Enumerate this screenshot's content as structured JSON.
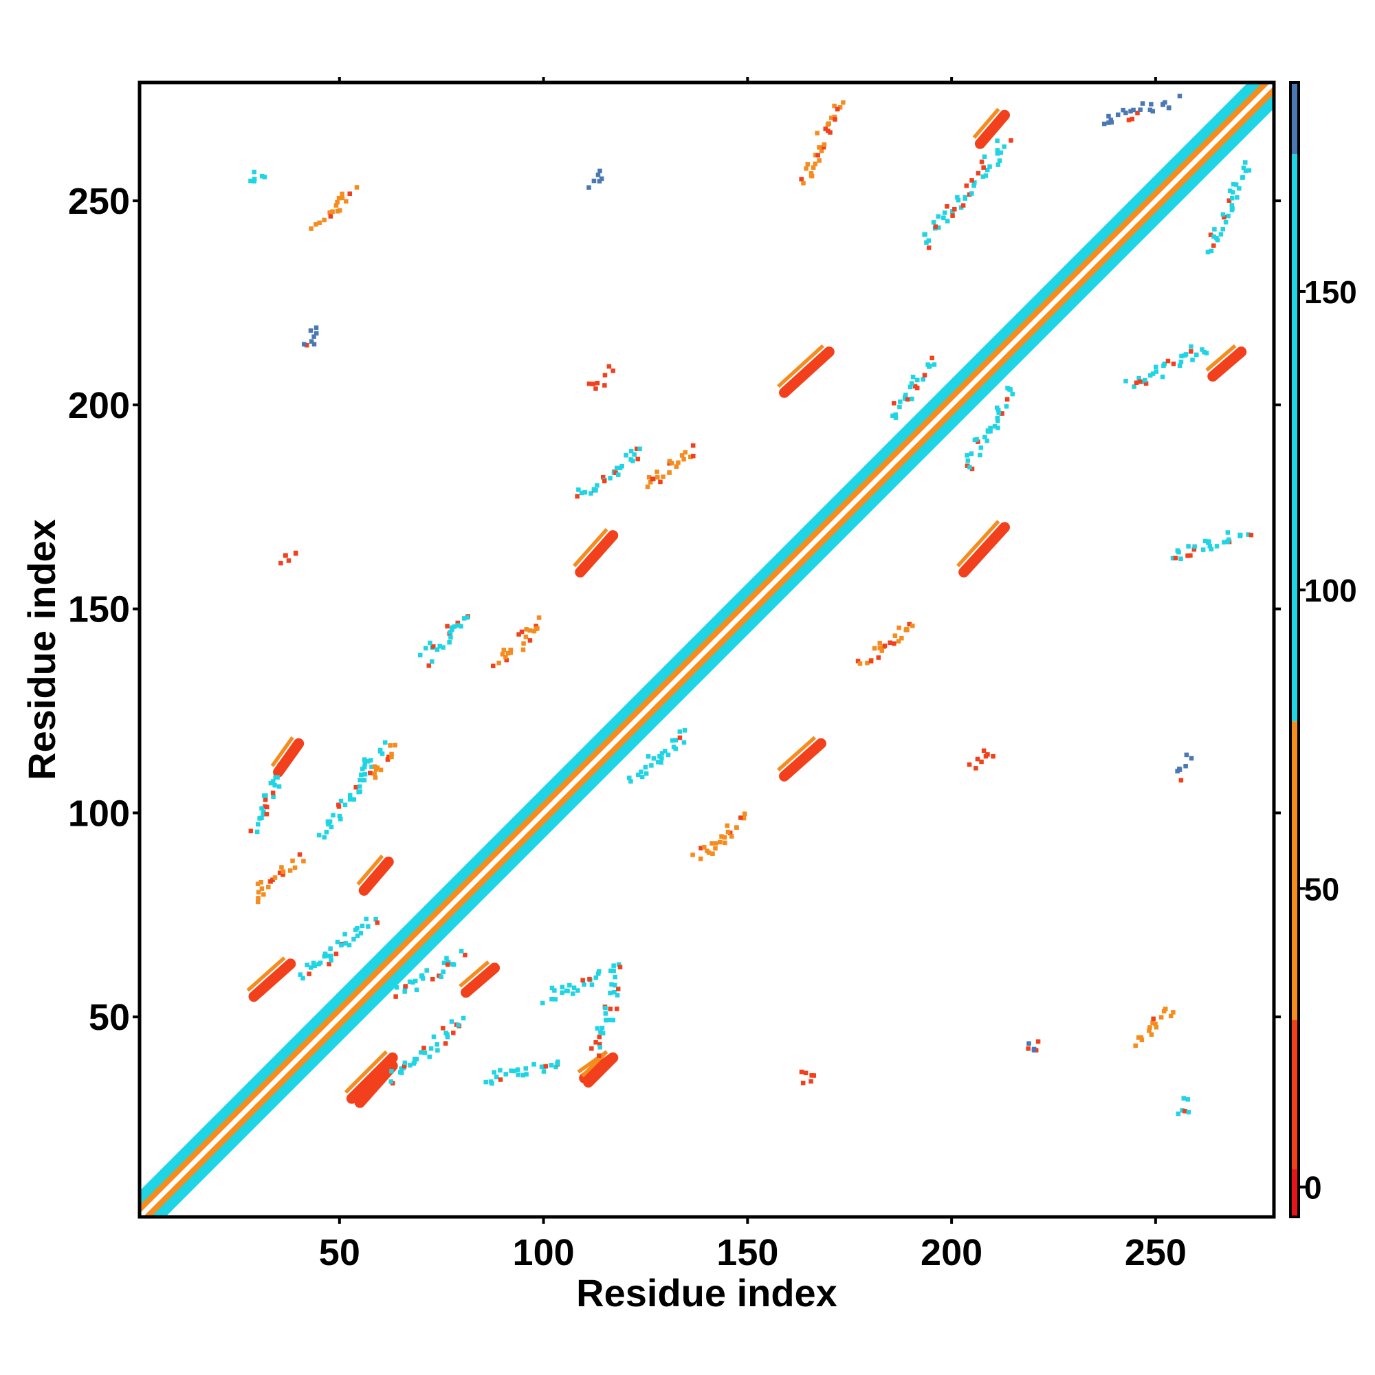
{
  "chart_data": {
    "type": "heatmap",
    "title": "",
    "xlabel": "Residue index",
    "ylabel": "Residue index",
    "xlim": [
      1,
      279
    ],
    "ylim": [
      1,
      279
    ],
    "xticks": [
      50,
      100,
      150,
      200,
      250
    ],
    "yticks": [
      50,
      100,
      150,
      200,
      250
    ],
    "grid": false,
    "colorbar": {
      "position": "right",
      "ticks": [
        0,
        50,
        100,
        150
      ],
      "range": [
        -5,
        185
      ],
      "segments": [
        {
          "from": -5,
          "to": 3,
          "color": "#e8141c"
        },
        {
          "from": 3,
          "to": 28,
          "color": "#f2401c"
        },
        {
          "from": 28,
          "to": 78,
          "color": "#f58c1e"
        },
        {
          "from": 78,
          "to": 173,
          "color": "#1fd4e4"
        },
        {
          "from": 173,
          "to": 185,
          "color": "#4a78b4"
        }
      ]
    },
    "diagonal_band": {
      "start": 1,
      "end": 279,
      "color_center": "#ffffff",
      "color_inner": "#f58c1e",
      "color_outer": "#1fd4e4"
    },
    "features": [
      {
        "kind": "strand",
        "x": [
          35,
          40
        ],
        "y": [
          110,
          117
        ],
        "color": "#f2401c"
      },
      {
        "kind": "strand",
        "x": [
          110,
          117
        ],
        "y": [
          35,
          40
        ],
        "color": "#f2401c"
      },
      {
        "kind": "strand",
        "x": [
          56,
          62
        ],
        "y": [
          81,
          88
        ],
        "color": "#f2401c"
      },
      {
        "kind": "strand",
        "x": [
          81,
          88
        ],
        "y": [
          56,
          62
        ],
        "color": "#f2401c"
      },
      {
        "kind": "strand",
        "x": [
          29,
          38
        ],
        "y": [
          55,
          63
        ],
        "color": "#f2401c"
      },
      {
        "kind": "strand",
        "x": [
          55,
          63
        ],
        "y": [
          29,
          38
        ],
        "color": "#f2401c"
      },
      {
        "kind": "strand",
        "x": [
          53,
          63
        ],
        "y": [
          30,
          40
        ],
        "color": "#f2401c"
      },
      {
        "kind": "strand",
        "x": [
          111,
          117
        ],
        "y": [
          34,
          40
        ],
        "color": "#f2401c"
      },
      {
        "kind": "strand",
        "x": [
          109,
          117
        ],
        "y": [
          159,
          168
        ],
        "color": "#f2401c"
      },
      {
        "kind": "strand",
        "x": [
          159,
          168
        ],
        "y": [
          109,
          117
        ],
        "color": "#f2401c"
      },
      {
        "kind": "strand",
        "x": [
          159,
          170
        ],
        "y": [
          203,
          213
        ],
        "color": "#f2401c"
      },
      {
        "kind": "strand",
        "x": [
          203,
          213
        ],
        "y": [
          159,
          170
        ],
        "color": "#f2401c"
      },
      {
        "kind": "strand",
        "x": [
          207,
          213
        ],
        "y": [
          264,
          271
        ],
        "color": "#f2401c"
      },
      {
        "kind": "strand",
        "x": [
          264,
          271
        ],
        "y": [
          207,
          213
        ],
        "color": "#f2401c"
      },
      {
        "kind": "arc",
        "x": [
          44,
          53
        ],
        "y": [
          245,
          253
        ],
        "color": "#f58c1e"
      },
      {
        "kind": "arc",
        "x": [
          245,
          253
        ],
        "y": [
          44,
          53
        ],
        "color": "#f58c1e"
      },
      {
        "kind": "arc",
        "x": [
          178,
          190
        ],
        "y": [
          137,
          148
        ],
        "color": "#f58c1e"
      },
      {
        "kind": "arc",
        "x": [
          88,
          100
        ],
        "y": [
          137,
          148
        ],
        "color": "#f58c1e"
      },
      {
        "kind": "arc",
        "x": [
          137,
          149
        ],
        "y": [
          89,
          100
        ],
        "color": "#f58c1e"
      },
      {
        "kind": "arc",
        "x": [
          124,
          136
        ],
        "y": [
          180,
          190
        ],
        "color": "#f58c1e"
      },
      {
        "kind": "arc",
        "x": [
          70,
          82
        ],
        "y": [
          138,
          150
        ],
        "color": "#1fd4e4"
      },
      {
        "kind": "arc",
        "x": [
          121,
          135
        ],
        "y": [
          109,
          120
        ],
        "color": "#1fd4e4"
      },
      {
        "kind": "arc",
        "x": [
          108,
          124
        ],
        "y": [
          178,
          190
        ],
        "color": "#1fd4e4"
      },
      {
        "kind": "arc",
        "x": [
          185,
          195
        ],
        "y": [
          198,
          212
        ],
        "color": "#1fd4e4"
      },
      {
        "kind": "arc",
        "x": [
          203,
          215
        ],
        "y": [
          185,
          205
        ],
        "color": "#1fd4e4"
      },
      {
        "kind": "arc",
        "x": [
          193,
          213
        ],
        "y": [
          240,
          265
        ],
        "color": "#1fd4e4"
      },
      {
        "kind": "arc",
        "x": [
          243,
          262
        ],
        "y": [
          205,
          215
        ],
        "color": "#1fd4e4"
      },
      {
        "kind": "arc",
        "x": [
          253,
          273
        ],
        "y": [
          163,
          170
        ],
        "color": "#1fd4e4"
      },
      {
        "kind": "arc",
        "x": [
          263,
          272
        ],
        "y": [
          238,
          260
        ],
        "color": "#1fd4e4"
      },
      {
        "kind": "arc",
        "x": [
          163,
          172
        ],
        "y": [
          255,
          275
        ],
        "color": "#f58c1e"
      },
      {
        "kind": "arc",
        "x": [
          236,
          255
        ],
        "y": [
          270,
          275
        ],
        "color": "#4a78b4"
      },
      {
        "kind": "arc",
        "x": [
          62,
          80
        ],
        "y": [
          35,
          50
        ],
        "color": "#1fd4e4"
      },
      {
        "kind": "arc",
        "x": [
          64,
          80
        ],
        "y": [
          56,
          66
        ],
        "color": "#1fd4e4"
      },
      {
        "kind": "arc",
        "x": [
          40,
          58
        ],
        "y": [
          60,
          75
        ],
        "color": "#1fd4e4"
      },
      {
        "kind": "arc",
        "x": [
          45,
          60
        ],
        "y": [
          95,
          117
        ],
        "color": "#1fd4e4"
      },
      {
        "kind": "arc",
        "x": [
          28,
          36
        ],
        "y": [
          96,
          113
        ],
        "color": "#1fd4e4"
      },
      {
        "kind": "arc",
        "x": [
          85,
          105
        ],
        "y": [
          35,
          40
        ],
        "color": "#1fd4e4"
      },
      {
        "kind": "arc",
        "x": [
          28,
          40
        ],
        "y": [
          80,
          90
        ],
        "color": "#f58c1e"
      },
      {
        "kind": "arc",
        "x": [
          57,
          63
        ],
        "y": [
          109,
          117
        ],
        "color": "#f58c1e"
      },
      {
        "kind": "arc",
        "x": [
          112,
          118
        ],
        "y": [
          41,
          60
        ],
        "color": "#1fd4e4"
      },
      {
        "kind": "arc",
        "x": [
          100,
          118
        ],
        "y": [
          55,
          63
        ],
        "color": "#1fd4e4"
      },
      {
        "kind": "arc",
        "x": [
          218,
          222
        ],
        "y": [
          42,
          44
        ],
        "color": "#4a78b4"
      },
      {
        "kind": "arc",
        "x": [
          255,
          258
        ],
        "y": [
          110,
          114
        ],
        "color": "#4a78b4"
      },
      {
        "kind": "arc",
        "x": [
          42,
          44
        ],
        "y": [
          214,
          220
        ],
        "color": "#4a78b4"
      },
      {
        "kind": "arc",
        "x": [
          112,
          115
        ],
        "y": [
          254,
          257
        ],
        "color": "#4a78b4"
      },
      {
        "kind": "arc",
        "x": [
          36,
          38
        ],
        "y": [
          162,
          165
        ],
        "color": "#f2401c"
      },
      {
        "kind": "arc",
        "x": [
          163,
          166
        ],
        "y": [
          35,
          37
        ],
        "color": "#f2401c"
      },
      {
        "kind": "arc",
        "x": [
          112,
          116
        ],
        "y": [
          205,
          209
        ],
        "color": "#f2401c"
      },
      {
        "kind": "arc",
        "x": [
          205,
          209
        ],
        "y": [
          112,
          116
        ],
        "color": "#f2401c"
      },
      {
        "kind": "arc",
        "x": [
          28,
          31
        ],
        "y": [
          256,
          258
        ],
        "color": "#1fd4e4"
      },
      {
        "kind": "arc",
        "x": [
          255,
          258
        ],
        "y": [
          27,
          30
        ],
        "color": "#1fd4e4"
      }
    ]
  }
}
